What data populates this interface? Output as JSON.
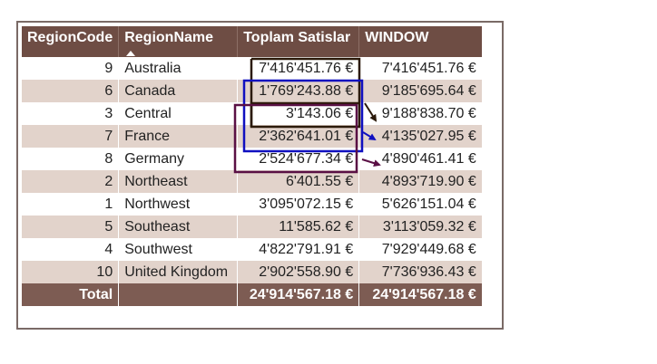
{
  "table": {
    "headers": {
      "region_code": "RegionCode",
      "region_name": "RegionName",
      "toplam_satislar": "Toplam Satislar",
      "window": "WINDOW"
    },
    "rows": [
      {
        "code": "9",
        "name": "Australia",
        "toplam": "7'416'451.76 €",
        "window": "7'416'451.76 €"
      },
      {
        "code": "6",
        "name": "Canada",
        "toplam": "1'769'243.88 €",
        "window": "9'185'695.64 €"
      },
      {
        "code": "3",
        "name": "Central",
        "toplam": "3'143.06 €",
        "window": "9'188'838.70 €"
      },
      {
        "code": "7",
        "name": "France",
        "toplam": "2'362'641.01 €",
        "window": "4'135'027.95 €"
      },
      {
        "code": "8",
        "name": "Germany",
        "toplam": "2'524'677.34 €",
        "window": "4'890'461.41 €"
      },
      {
        "code": "2",
        "name": "Northeast",
        "toplam": "6'401.55 €",
        "window": "4'893'719.90 €"
      },
      {
        "code": "1",
        "name": "Northwest",
        "toplam": "3'095'072.15 €",
        "window": "5'626'151.04 €"
      },
      {
        "code": "5",
        "name": "Southeast",
        "toplam": "11'585.62 €",
        "window": "3'113'059.32 €"
      },
      {
        "code": "4",
        "name": "Southwest",
        "toplam": "4'822'791.91 €",
        "window": "7'929'449.68 €"
      },
      {
        "code": "10",
        "name": "United Kingdom",
        "toplam": "2'902'558.90 €",
        "window": "7'736'936.43 €"
      }
    ],
    "total": {
      "label": "Total",
      "toplam": "24'914'567.18 €",
      "window": "24'914'567.18 €"
    }
  },
  "colors": {
    "header_bg": "#6e4d44",
    "total_bg": "#7d5c53",
    "stripe": "#e2d3cb",
    "annotation_black": "#2b1a0a",
    "annotation_blue": "#1010c0",
    "annotation_purple": "#5a1045"
  }
}
